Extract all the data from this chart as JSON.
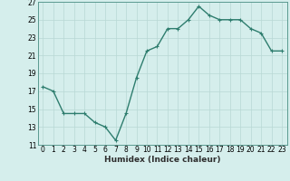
{
  "x": [
    0,
    1,
    2,
    3,
    4,
    5,
    6,
    7,
    8,
    9,
    10,
    11,
    12,
    13,
    14,
    15,
    16,
    17,
    18,
    19,
    20,
    21,
    22,
    23
  ],
  "y": [
    17.5,
    17.0,
    14.5,
    14.5,
    14.5,
    13.5,
    13.0,
    11.5,
    14.5,
    18.5,
    21.5,
    22.0,
    24.0,
    24.0,
    25.0,
    26.5,
    25.5,
    25.0,
    25.0,
    25.0,
    24.0,
    23.5,
    21.5,
    21.5
  ],
  "line_color": "#2e7d6e",
  "marker": "+",
  "marker_size": 3,
  "background_color": "#d5eeec",
  "grid_color": "#b8d8d5",
  "xlabel": "Humidex (Indice chaleur)",
  "ylim": [
    11,
    27
  ],
  "xlim": [
    -0.5,
    23.5
  ],
  "yticks": [
    11,
    13,
    15,
    17,
    19,
    21,
    23,
    25,
    27
  ],
  "xticks": [
    0,
    1,
    2,
    3,
    4,
    5,
    6,
    7,
    8,
    9,
    10,
    11,
    12,
    13,
    14,
    15,
    16,
    17,
    18,
    19,
    20,
    21,
    22,
    23
  ],
  "tick_fontsize": 5.5,
  "xlabel_fontsize": 6.5,
  "xlabel_fontweight": "bold",
  "line_width": 1.0
}
